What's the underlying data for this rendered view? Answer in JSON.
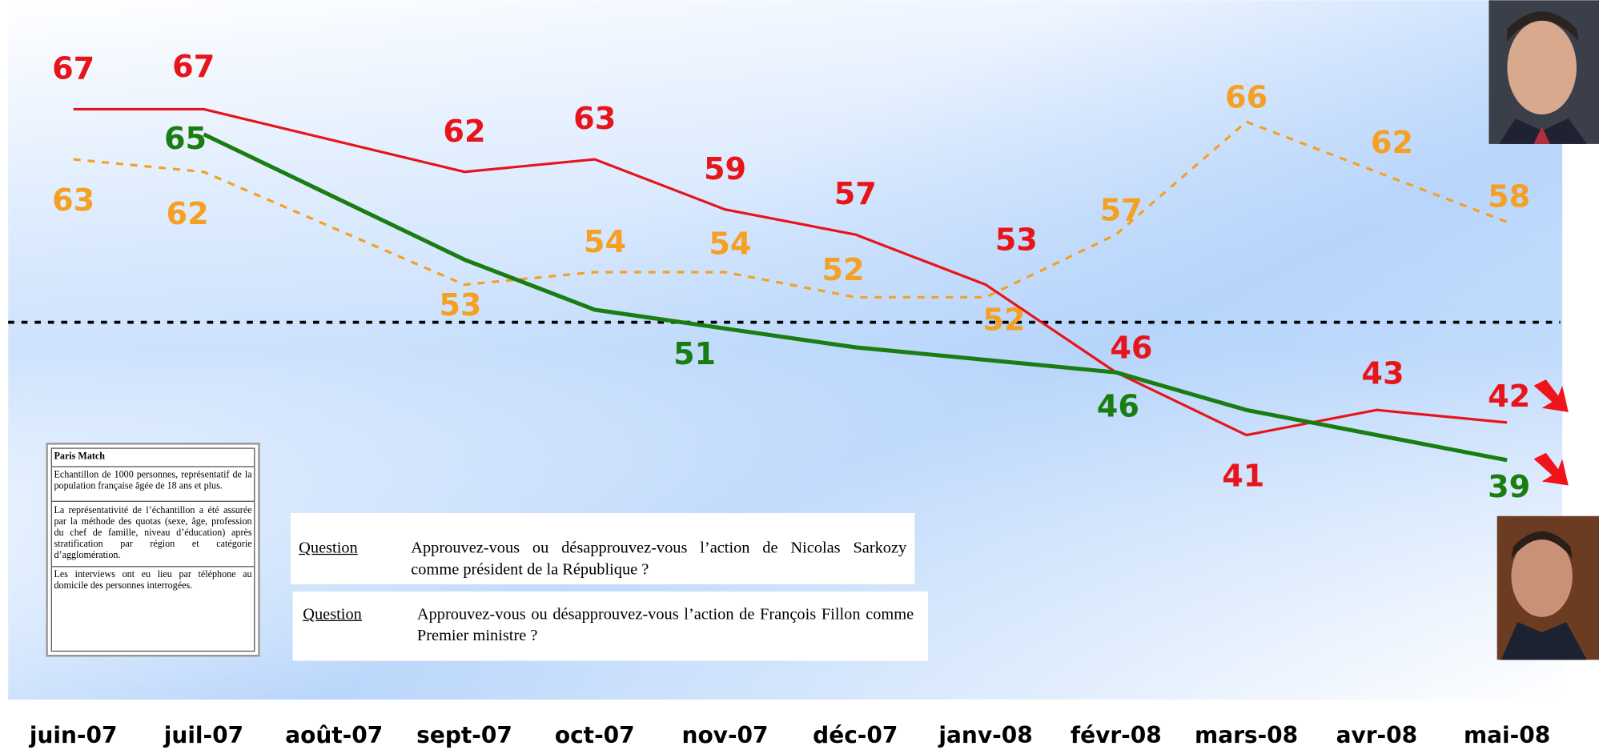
{
  "chart_data": {
    "type": "line",
    "categories": [
      "juin-07",
      "juil-07",
      "août-07",
      "sept-07",
      "oct-07",
      "nov-07",
      "déc-07",
      "janv-08",
      "févr-08",
      "mars-08",
      "avr-08",
      "mai-08"
    ],
    "ylim": [
      36,
      70
    ],
    "span_gaps": true,
    "reference_line": 50,
    "series": [
      {
        "color": "#e8141b",
        "dashed": false,
        "values": [
          67,
          67,
          null,
          62,
          63,
          59,
          57,
          53,
          46,
          41,
          43,
          42
        ],
        "value_labels": [
          "67",
          "67",
          null,
          "62",
          "63",
          "59",
          "57",
          "53",
          "46",
          "41",
          "43",
          "42"
        ]
      },
      {
        "color": "#f5a023",
        "dashed": true,
        "values": [
          63,
          62,
          null,
          53,
          54,
          54,
          52,
          52,
          57,
          66,
          62,
          58
        ],
        "value_labels": [
          "63",
          "62",
          null,
          "53",
          "54",
          "54",
          "52",
          "52",
          "57",
          "66",
          "62",
          "58"
        ]
      },
      {
        "color": "#1a7d12",
        "dashed": false,
        "values": [
          null,
          65,
          null,
          55,
          51,
          null,
          48,
          null,
          46,
          43,
          null,
          39
        ],
        "value_labels": [
          null,
          "65",
          null,
          null,
          "51",
          null,
          null,
          null,
          "46",
          null,
          null,
          "39"
        ]
      }
    ]
  },
  "source_box": {
    "title": "Paris Match",
    "paragraphs": [
      "Echantillon de 1000 personnes, représentatif de la population française âgée de 18 ans et plus.",
      "La représentativité de l’échantillon a été assurée par la méthode des quotas (sexe, âge, profession du chef de famille, niveau d’éducation) après stratification par région et catégorie d’agglomération.",
      "Les interviews ont eu lieu par téléphone au domicile des personnes interrogées."
    ]
  },
  "questions": [
    {
      "label": "Question",
      "text": "Approuvez-vous ou désapprouvez-vous l’action de Nicolas Sarkozy comme président de la République ?"
    },
    {
      "label": "Question",
      "text": "Approuvez-vous ou désapprouvez-vous l’action de François Fillon comme Premier ministre ?"
    }
  ]
}
